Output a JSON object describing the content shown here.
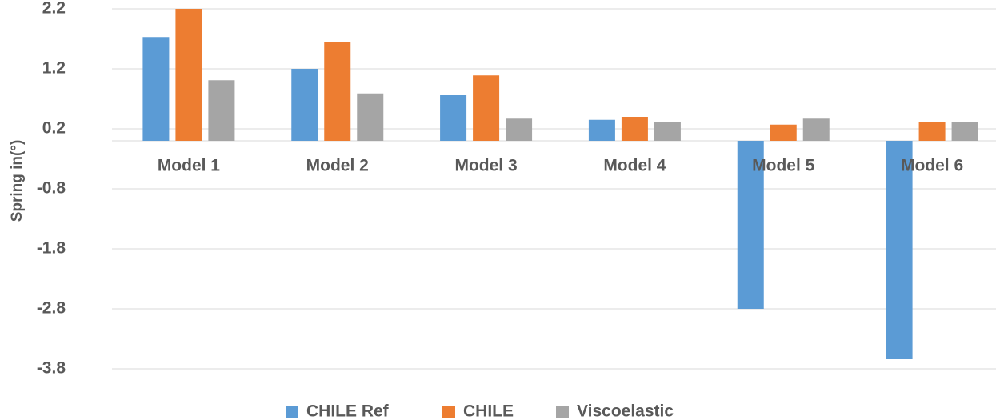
{
  "chart_data": {
    "type": "bar",
    "y_label": "Spring in(°)",
    "categories": [
      "Model 1",
      "Model 2",
      "Model 3",
      "Model 4",
      "Model 5",
      "Model 6"
    ],
    "series": [
      {
        "name": "CHILE Ref",
        "color": "#5b9bd5",
        "values": [
          1.73,
          1.2,
          0.76,
          0.35,
          -2.8,
          -3.64
        ]
      },
      {
        "name": "CHILE",
        "color": "#ed7d31",
        "values": [
          2.2,
          1.65,
          1.09,
          0.4,
          0.27,
          0.32
        ]
      },
      {
        "name": "Viscoelastic",
        "color": "#a5a5a5",
        "values": [
          1.01,
          0.79,
          0.37,
          0.32,
          0.37,
          0.32
        ]
      }
    ],
    "ylim": [
      -3.8,
      2.2
    ],
    "yticks": [
      2.2,
      1.2,
      0.2,
      -0.8,
      -1.8,
      -2.8,
      -3.8
    ],
    "grid": true
  }
}
